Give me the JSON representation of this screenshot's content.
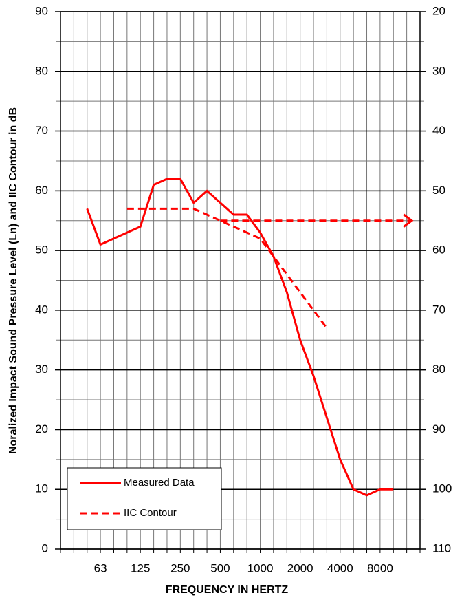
{
  "chart_data": {
    "type": "line",
    "x_label": "FREQUENCY IN HERTZ",
    "y_label": "Noralized Impact Sound Pressure Level (Ln) and IIC Contour in dB",
    "categories": [
      null,
      null,
      null,
      "63",
      null,
      null,
      "125",
      null,
      null,
      "250",
      null,
      null,
      "500",
      null,
      null,
      "1000",
      null,
      null,
      "2000",
      null,
      null,
      "4000",
      null,
      null,
      "8000",
      null,
      null,
      null
    ],
    "series": [
      {
        "name": "Measured Data",
        "color": "#ff0000",
        "dash": false,
        "values": [
          null,
          null,
          57,
          51,
          52,
          53,
          54,
          61,
          62,
          62,
          58,
          60,
          58,
          56,
          56,
          53,
          49,
          43,
          35,
          29,
          22,
          15,
          10,
          9,
          10,
          10,
          null,
          null
        ]
      },
      {
        "name": "IIC Contour",
        "color": "#ff0000",
        "dash": true,
        "axis": "y2",
        "arrow_from": 12,
        "values": [
          null,
          null,
          null,
          null,
          null,
          53,
          53,
          53,
          53,
          53,
          53,
          54,
          55,
          56,
          57,
          58,
          61,
          64,
          67,
          70,
          73,
          null,
          null,
          null,
          null,
          null,
          null,
          null
        ]
      }
    ],
    "ylim": [
      0,
      90
    ],
    "yticks": [
      0,
      10,
      20,
      30,
      40,
      50,
      60,
      70,
      80,
      90
    ],
    "y2lim": [
      110,
      20
    ],
    "y2ticks": [
      110,
      100,
      90,
      80,
      70,
      60,
      50,
      40,
      30,
      20
    ],
    "grid": true,
    "legend": "lower left"
  }
}
